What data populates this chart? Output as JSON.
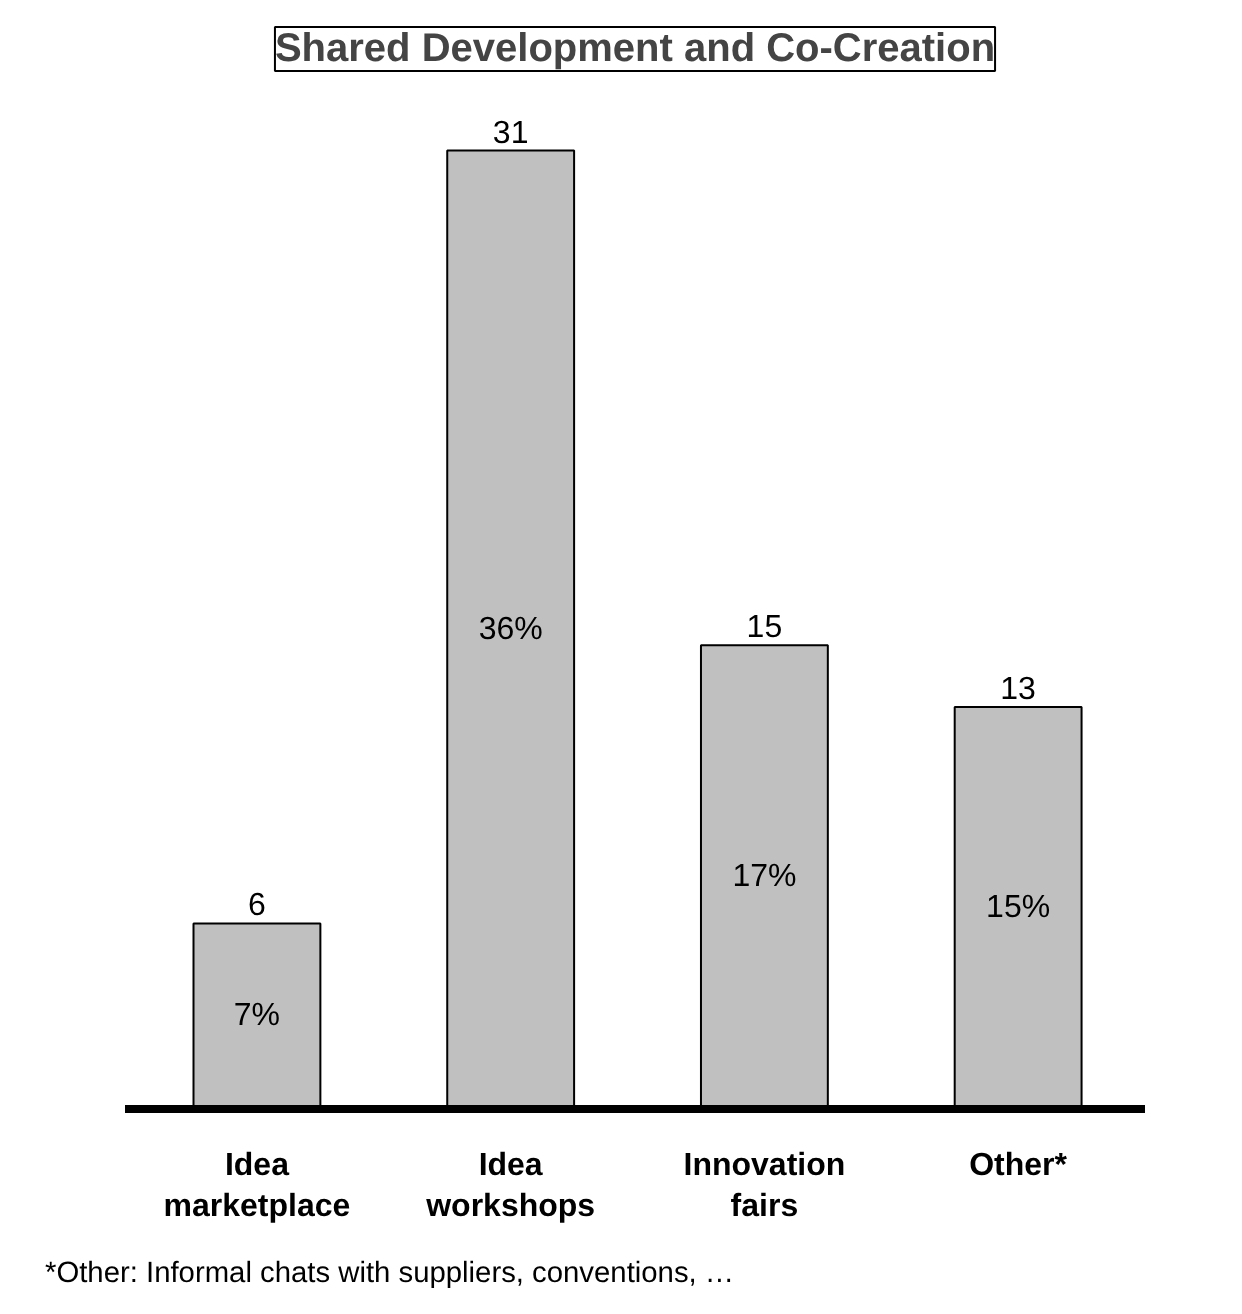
{
  "chart_data": {
    "type": "bar",
    "title": "Shared Development and Co-Creation",
    "categories": [
      "Idea marketplace",
      "Idea workshops",
      "Innovation fairs",
      "Other*"
    ],
    "values": [
      6,
      31,
      15,
      13
    ],
    "color": "#c0c0c0",
    "data_labels": true,
    "annotations": [
      "7%",
      "36%",
      "17%",
      "15%",
      "*Other: Informal chats with suppliers, conventions, …"
    ]
  }
}
